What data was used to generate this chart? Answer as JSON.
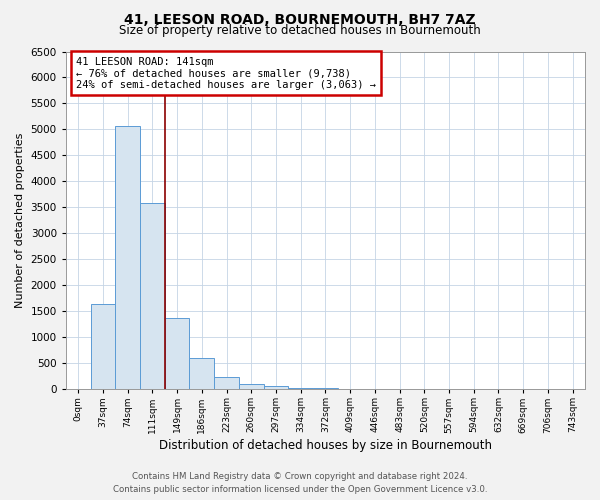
{
  "title": "41, LEESON ROAD, BOURNEMOUTH, BH7 7AZ",
  "subtitle": "Size of property relative to detached houses in Bournemouth",
  "xlabel": "Distribution of detached houses by size in Bournemouth",
  "ylabel": "Number of detached properties",
  "bar_values": [
    0,
    1650,
    5060,
    3580,
    1380,
    600,
    230,
    110,
    55,
    28,
    18,
    10,
    6,
    4,
    3,
    2,
    2,
    1,
    1,
    1,
    0
  ],
  "x_labels": [
    "0sqm",
    "37sqm",
    "74sqm",
    "111sqm",
    "149sqm",
    "186sqm",
    "223sqm",
    "260sqm",
    "297sqm",
    "334sqm",
    "372sqm",
    "409sqm",
    "446sqm",
    "483sqm",
    "520sqm",
    "557sqm",
    "594sqm",
    "632sqm",
    "669sqm",
    "706sqm",
    "743sqm"
  ],
  "bar_color": "#d6e4f0",
  "bar_edge_color": "#5b9bd5",
  "bar_linewidth": 0.7,
  "ylim": [
    0,
    6500
  ],
  "yticks": [
    0,
    500,
    1000,
    1500,
    2000,
    2500,
    3000,
    3500,
    4000,
    4500,
    5000,
    5500,
    6000,
    6500
  ],
  "vline_x": 3.5,
  "vline_color": "#8b0000",
  "annotation_text": "41 LEESON ROAD: 141sqm\n← 76% of detached houses are smaller (9,738)\n24% of semi-detached houses are larger (3,063) →",
  "annotation_box_color": "#cc0000",
  "footer_line1": "Contains HM Land Registry data © Crown copyright and database right 2024.",
  "footer_line2": "Contains public sector information licensed under the Open Government Licence v3.0.",
  "bg_color": "#f2f2f2",
  "plot_bg_color": "#ffffff",
  "grid_color": "#c5d5e5",
  "title_fontsize": 10,
  "subtitle_fontsize": 8.5,
  "ylabel_fontsize": 8,
  "xlabel_fontsize": 8.5,
  "ytick_fontsize": 7.5,
  "xtick_fontsize": 6.5
}
